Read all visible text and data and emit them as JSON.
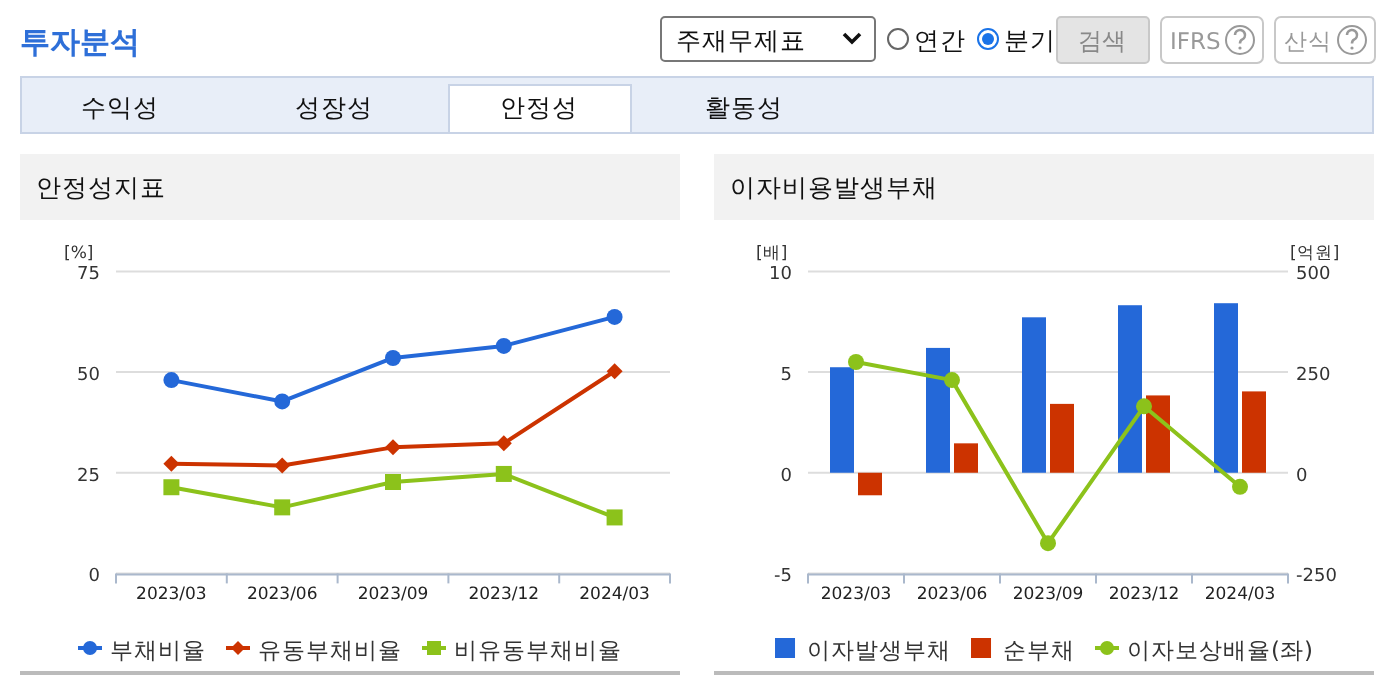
{
  "chart_data": [
    {
      "type": "other",
      "title": "투자분석",
      "annotations": [
        "주재무제표",
        "연간",
        "분기",
        "검색",
        "IFRS",
        "산식",
        "수익성",
        "성장성",
        "안정성",
        "활동성"
      ]
    },
    {
      "type": "line",
      "title": "안정성지표",
      "ylabel": "[%]",
      "categories": [
        "2023/03",
        "2023/06",
        "2023/09",
        "2023/12",
        "2024/03"
      ],
      "ylim": [
        0,
        75
      ],
      "yticks": [
        0,
        25,
        50,
        75
      ],
      "grid": "y",
      "legend": "bottom",
      "series": [
        {
          "name": "부채비율",
          "color": "#2468d8",
          "marker": "circle",
          "values": [
            48.0,
            42.7,
            53.5,
            56.5,
            63.7
          ]
        },
        {
          "name": "유동부채비율",
          "color": "#cc3300",
          "marker": "diamond",
          "values": [
            27.2,
            26.8,
            31.3,
            32.3,
            50.2
          ]
        },
        {
          "name": "비유동부채비율",
          "color": "#8cc21b",
          "marker": "square",
          "values": [
            21.4,
            16.4,
            22.7,
            24.7,
            13.9
          ]
        }
      ]
    },
    {
      "type": "bar",
      "title": "이자비용발생부채",
      "ylabel": "[배]",
      "y2label": "[억원]",
      "categories": [
        "2023/03",
        "2023/06",
        "2023/09",
        "2023/12",
        "2024/03"
      ],
      "ylim": [
        -5,
        10
      ],
      "yticks": [
        -5,
        0,
        5,
        10
      ],
      "y2lim": [
        -250,
        500
      ],
      "y2ticks": [
        -250,
        0,
        250,
        500
      ],
      "grid": "y",
      "legend": "bottom",
      "series": [
        {
          "name": "이자발생부채",
          "color": "#2468d8",
          "axis": "y2",
          "values": [
            262,
            310,
            386,
            416,
            421
          ]
        },
        {
          "name": "순부채",
          "color": "#cc3300",
          "axis": "y2",
          "values": [
            -56,
            73,
            171,
            192,
            202
          ]
        },
        {
          "name": "이자보상배율(좌)",
          "type": "line",
          "color": "#8cc21b",
          "marker": "circle",
          "axis": "y",
          "values": [
            5.5,
            4.6,
            -3.5,
            3.3,
            -0.7
          ]
        }
      ]
    }
  ]
}
